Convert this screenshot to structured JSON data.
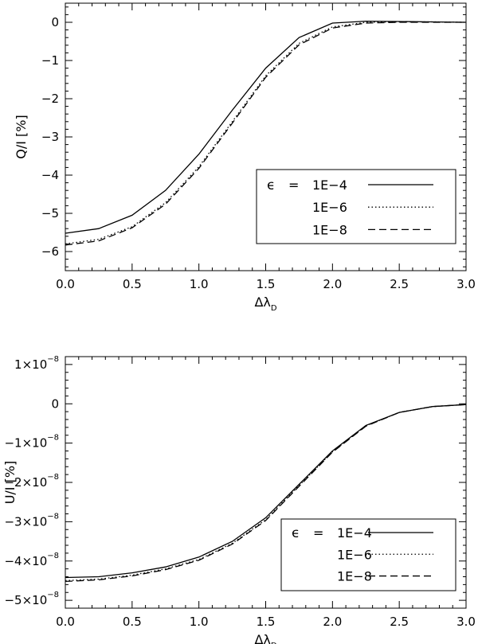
{
  "chart_data": [
    {
      "type": "line",
      "xlabel": "Δλ",
      "xlabel_sub": "D",
      "ylabel": "Q/I [%]",
      "xlim": [
        0,
        3
      ],
      "ylim": [
        -6.5,
        0.5
      ],
      "x_ticks": [
        0,
        0.5,
        1,
        1.5,
        2,
        2.5,
        3
      ],
      "x_tick_labels": [
        "0.0",
        "0.5",
        "1.0",
        "1.5",
        "2.0",
        "2.5",
        "3.0"
      ],
      "y_ticks": [
        0,
        -1,
        -2,
        -3,
        -4,
        -5,
        -6
      ],
      "y_tick_labels": [
        {
          "base": "0",
          "exp": ""
        },
        {
          "base": "−1",
          "exp": ""
        },
        {
          "base": "−2",
          "exp": ""
        },
        {
          "base": "−3",
          "exp": ""
        },
        {
          "base": "−4",
          "exp": ""
        },
        {
          "base": "−5",
          "exp": ""
        },
        {
          "base": "−6",
          "exp": ""
        }
      ],
      "legend": {
        "position": "bottom-right",
        "symbol": "ϵ",
        "equals": "=",
        "labels": [
          "1E−4",
          "1E−6",
          "1E−8"
        ]
      },
      "x": [
        0,
        0.25,
        0.5,
        0.75,
        1.0,
        1.25,
        1.5,
        1.75,
        2.0,
        2.25,
        2.5,
        2.75,
        3.0
      ],
      "series": [
        {
          "label": "1E−4",
          "style": "solid",
          "values": [
            -5.52,
            -5.4,
            -5.05,
            -4.4,
            -3.45,
            -2.3,
            -1.2,
            -0.4,
            -0.02,
            0.03,
            0.02,
            0.01,
            0.0
          ]
        },
        {
          "label": "1E−6",
          "style": "dotted",
          "values": [
            -5.8,
            -5.68,
            -5.35,
            -4.72,
            -3.78,
            -2.6,
            -1.4,
            -0.55,
            -0.12,
            0.0,
            0.01,
            0.01,
            0.0
          ]
        },
        {
          "label": "1E−8",
          "style": "dashed",
          "values": [
            -5.83,
            -5.72,
            -5.38,
            -4.76,
            -3.82,
            -2.64,
            -1.44,
            -0.59,
            -0.15,
            -0.02,
            0.0,
            0.0,
            0.0
          ]
        }
      ]
    },
    {
      "type": "line",
      "xlabel": "Δλ",
      "xlabel_sub": "D",
      "ylabel": "U/I [%]",
      "xlim": [
        0,
        3
      ],
      "ylim": [
        -5.2e-08,
        1.2e-08
      ],
      "x_ticks": [
        0,
        0.5,
        1,
        1.5,
        2,
        2.5,
        3
      ],
      "x_tick_labels": [
        "0.0",
        "0.5",
        "1.0",
        "1.5",
        "2.0",
        "2.5",
        "3.0"
      ],
      "y_ticks": [
        1e-08,
        0,
        -1e-08,
        -2e-08,
        -3e-08,
        -4e-08,
        -5e-08
      ],
      "y_tick_labels": [
        {
          "base": "1×10",
          "exp": "−8"
        },
        {
          "base": "0",
          "exp": ""
        },
        {
          "base": "−1×10",
          "exp": "−8"
        },
        {
          "base": "−2×10",
          "exp": "−8"
        },
        {
          "base": "−3×10",
          "exp": "−8"
        },
        {
          "base": "−4×10",
          "exp": "−8"
        },
        {
          "base": "−5×10",
          "exp": "−8"
        }
      ],
      "legend": {
        "position": "bottom-right",
        "symbol": "ϵ",
        "equals": "=",
        "labels": [
          "1E−4",
          "1E−6",
          "1E−8"
        ]
      },
      "x": [
        0,
        0.25,
        0.5,
        0.75,
        1.0,
        1.25,
        1.5,
        1.75,
        2.0,
        2.25,
        2.5,
        2.75,
        3.0
      ],
      "series": [
        {
          "label": "1E−4",
          "style": "solid",
          "values": [
            -4.42e-08,
            -4.4e-08,
            -4.3e-08,
            -4.15e-08,
            -3.9e-08,
            -3.5e-08,
            -2.9e-08,
            -2.05e-08,
            -1.2e-08,
            -5.5e-09,
            -2.2e-09,
            -7e-10,
            -2e-10
          ]
        },
        {
          "label": "1E−6",
          "style": "dotted",
          "values": [
            -4.5e-08,
            -4.46e-08,
            -4.36e-08,
            -4.2e-08,
            -3.96e-08,
            -3.55e-08,
            -2.95e-08,
            -2.08e-08,
            -1.22e-08,
            -5.6e-09,
            -2.2e-09,
            -7e-10,
            -2e-10
          ]
        },
        {
          "label": "1E−8",
          "style": "dashed",
          "values": [
            -4.52e-08,
            -4.48e-08,
            -4.38e-08,
            -4.22e-08,
            -3.98e-08,
            -3.57e-08,
            -2.97e-08,
            -2.1e-08,
            -1.23e-08,
            -5.7e-09,
            -2.2e-09,
            -7e-10,
            -2e-10
          ]
        }
      ]
    }
  ]
}
